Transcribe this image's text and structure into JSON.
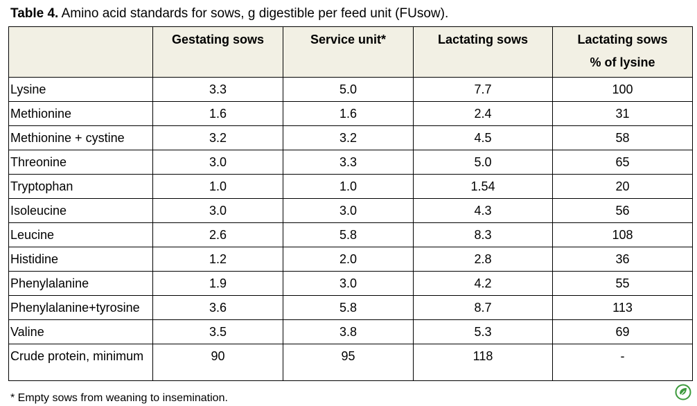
{
  "caption": {
    "label": "Table 4.",
    "text": " Amino acid standards for sows, g digestible per feed unit (FUsow)."
  },
  "table": {
    "headers": [
      {
        "lines": [
          ""
        ]
      },
      {
        "lines": [
          "Gestating sows"
        ]
      },
      {
        "lines": [
          "Service unit*"
        ]
      },
      {
        "lines": [
          "Lactating sows"
        ]
      },
      {
        "lines": [
          "Lactating sows",
          "% of lysine"
        ]
      }
    ],
    "rows": [
      [
        "Lysine",
        "3.3",
        "5.0",
        "7.7",
        "100"
      ],
      [
        "Methionine",
        "1.6",
        "1.6",
        "2.4",
        "31"
      ],
      [
        "Methionine + cystine",
        "3.2",
        "3.2",
        "4.5",
        "58"
      ],
      [
        "Threonine",
        "3.0",
        "3.3",
        "5.0",
        "65"
      ],
      [
        "Tryptophan",
        "1.0",
        "1.0",
        "1.54",
        "20"
      ],
      [
        "Isoleucine",
        "3.0",
        "3.0",
        "4.3",
        "56"
      ],
      [
        "Leucine",
        "2.6",
        "5.8",
        "8.3",
        "108"
      ],
      [
        "Histidine",
        "1.2",
        "2.0",
        "2.8",
        "36"
      ],
      [
        "Phenylalanine",
        "1.9",
        "3.0",
        "4.2",
        "55"
      ],
      [
        "Phenylalanine+tyrosine",
        "3.6",
        "5.8",
        "8.7",
        "113"
      ],
      [
        "Valine",
        "3.5",
        "3.8",
        "5.3",
        "69"
      ],
      [
        "Crude protein, minimum",
        "90",
        "95",
        "118",
        "-"
      ]
    ]
  },
  "footnote": "* Empty sows from weaning to insemination.",
  "logo": {
    "icon": "leaf-seal-icon",
    "color": "#3c9a3c"
  }
}
